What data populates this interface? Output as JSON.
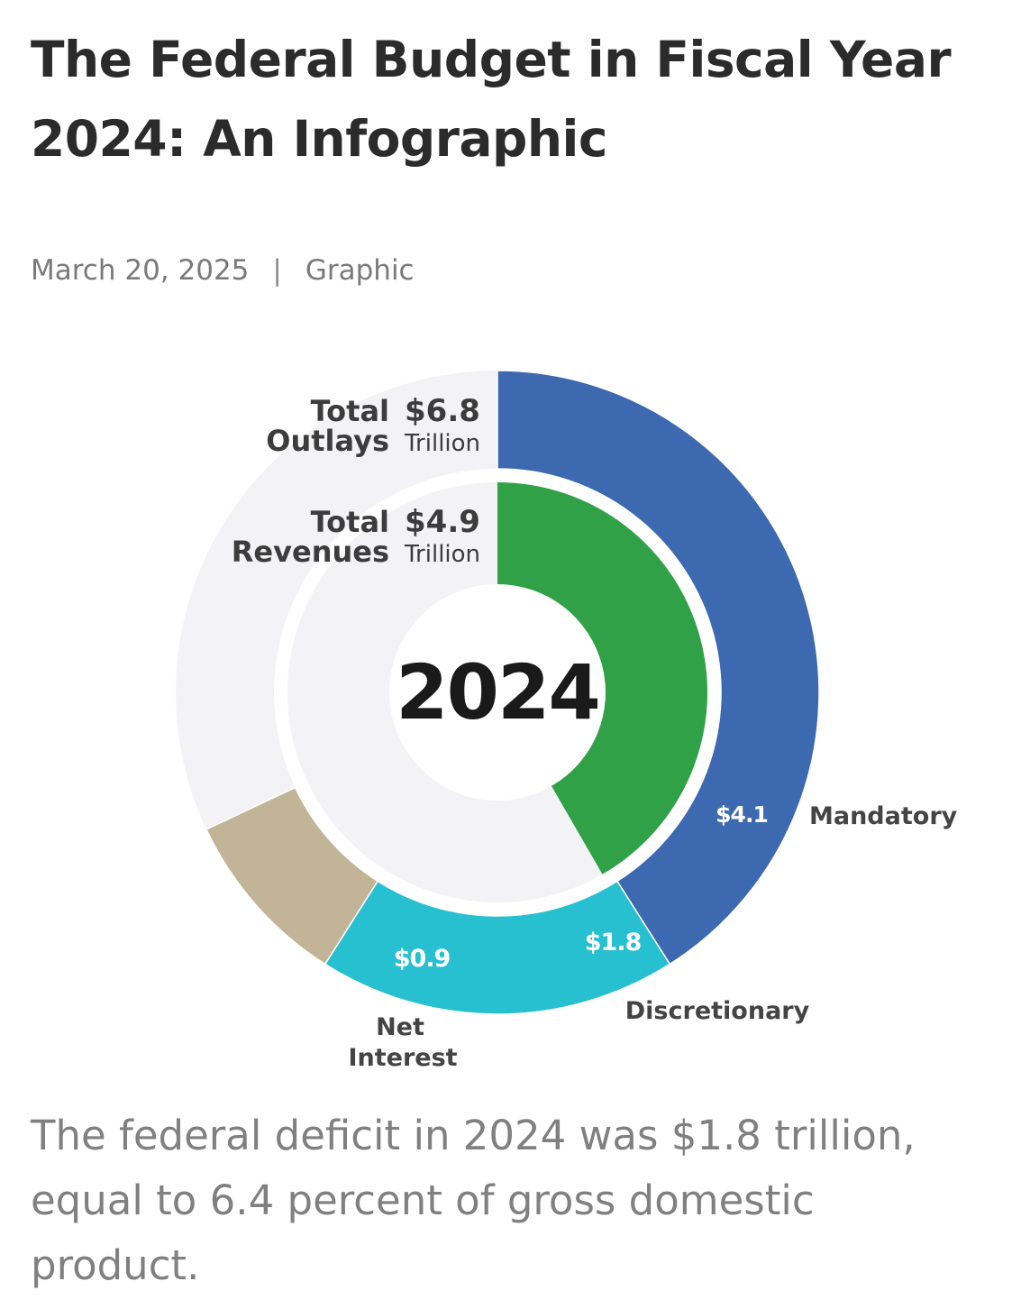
{
  "header": {
    "title": "The Federal Budget in Fiscal Year 2024: An Infographic",
    "date": "March 20, 2025",
    "separator": "|",
    "category": "Graphic"
  },
  "chart_data": {
    "type": "pie",
    "center_label": "2024",
    "unit": "Trillion",
    "rings": [
      {
        "name": "Total Outlays",
        "label_lines": [
          "Total",
          "Outlays"
        ],
        "total": 6.8,
        "total_label": "$6.8",
        "segments": [
          {
            "name": "Mandatory",
            "value": 4.1,
            "value_label": "$4.1",
            "color": "#3d69b1"
          },
          {
            "name": "Discretionary",
            "value": 1.8,
            "value_label": "$1.8",
            "color": "#27c0d1"
          },
          {
            "name": "Net Interest",
            "label_lines": [
              "Net",
              "Interest"
            ],
            "value": 0.9,
            "value_label": "$0.9",
            "color": "#c2b497"
          }
        ]
      },
      {
        "name": "Total Revenues",
        "label_lines": [
          "Total",
          "Revenues"
        ],
        "total": 4.9,
        "total_label": "$4.9",
        "segments": [
          {
            "name": "Revenues",
            "value": 4.9,
            "color": "#30a146"
          }
        ]
      }
    ],
    "background_color": "#f3f3f5"
  },
  "caption": "The federal deficit in 2024 was $1.8 trillion, equal to 6.4 percent of gross domestic product."
}
